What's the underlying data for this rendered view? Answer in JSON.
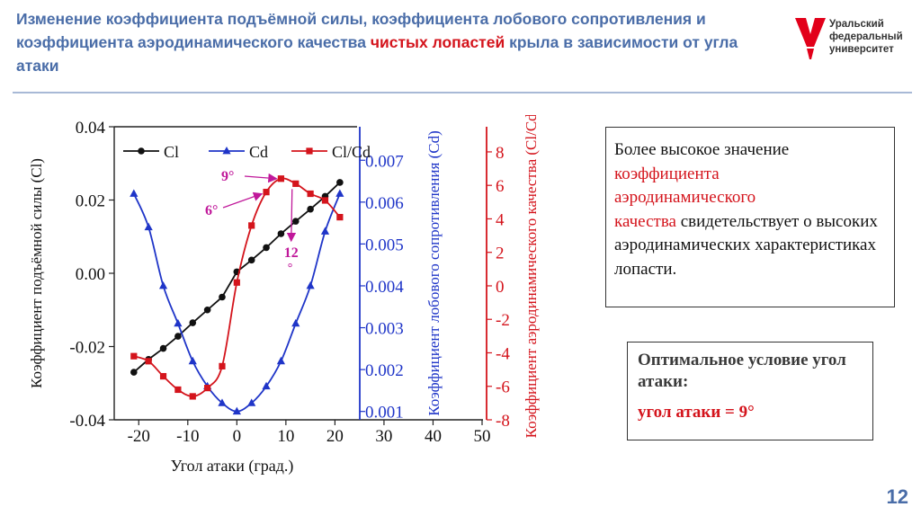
{
  "slide": {
    "title_part1": "Изменение коэффициента подъёмной силы, коэффициента лобового сопротивления и коэффициента аэродинамического качества ",
    "title_red": "чистых лопастей",
    "title_part2": " крыла в зависимости от угла атаки",
    "logo_line1": "Уральский",
    "logo_line2": "федеральный",
    "logo_line3": "университет",
    "page_number": "12"
  },
  "note1": {
    "line1": "Более высокое значение",
    "red_line1": "коэффициента",
    "red_line2": "аэродинамического",
    "red_line3": "качества",
    "tail": " свидетельствует о высоких аэродинамических характеристиках лопасти."
  },
  "note2": {
    "heading": "Оптимальное условие угол атаки",
    "colon": ":",
    "value": "угол атаки = 9°"
  },
  "colors": {
    "cl": "#111111",
    "cd": "#1f35c8",
    "clcd": "#d4141c",
    "annotation": "#c0189a",
    "title": "#4a6da8"
  },
  "chart_data": {
    "type": "line",
    "xlabel": "Угол атаки (град.)",
    "x_ticks": [
      "-20",
      "-10",
      "0",
      "10",
      "20",
      "30",
      "40",
      "50"
    ],
    "xlim": [
      -25,
      50
    ],
    "axes": {
      "left": {
        "label": "Коэффициент подъёмной силы (Cl)",
        "ylim": [
          -0.04,
          0.04
        ],
        "ticks": [
          "-0.04",
          "-0.02",
          "0.00",
          "0.02",
          "0.04"
        ]
      },
      "cd": {
        "label": "Коэффициент лобового сопротивления (Cd)",
        "ylim": [
          0.0008,
          0.0078
        ],
        "ticks": [
          "0.001",
          "0.002",
          "0.003",
          "0.004",
          "0.005",
          "0.006",
          "0.007"
        ]
      },
      "clcd": {
        "label": "Коэффициент аэродинамического качества (Cl/Cd)",
        "ylim": [
          -8,
          9.5
        ],
        "ticks": [
          "-8",
          "-6",
          "-4",
          "-2",
          "0",
          "2",
          "4",
          "6",
          "8"
        ]
      }
    },
    "series": [
      {
        "name": "Cl",
        "axis": "left",
        "marker": "circle",
        "x": [
          -21,
          -18,
          -15,
          -12,
          -9,
          -6,
          -3,
          0,
          3,
          6,
          9,
          12,
          15,
          18,
          21
        ],
        "y": [
          -0.027,
          -0.0235,
          -0.0205,
          -0.0172,
          -0.0135,
          -0.01,
          -0.0065,
          0.0004,
          0.0036,
          0.007,
          0.0108,
          0.0142,
          0.0175,
          0.021,
          0.0248
        ]
      },
      {
        "name": "Cd",
        "axis": "cd",
        "marker": "triangle",
        "x": [
          -21,
          -18,
          -15,
          -12,
          -9,
          -6,
          -3,
          0,
          3,
          6,
          9,
          12,
          15,
          18,
          21
        ],
        "y": [
          0.0062,
          0.0054,
          0.004,
          0.0031,
          0.0022,
          0.0016,
          0.0012,
          0.001,
          0.0012,
          0.0016,
          0.0022,
          0.0031,
          0.004,
          0.0053,
          0.0062
        ]
      },
      {
        "name": "Cl/Cd",
        "axis": "clcd",
        "marker": "square",
        "x": [
          -21,
          -18,
          -15,
          -12,
          -9,
          -6,
          -3,
          0,
          3,
          6,
          9,
          12,
          15,
          18,
          21
        ],
        "y": [
          -4.2,
          -4.5,
          -5.4,
          -6.2,
          -6.6,
          -6.1,
          -4.8,
          0.2,
          3.6,
          5.6,
          6.4,
          6.1,
          5.5,
          5.1,
          4.1
        ]
      }
    ],
    "annotations": [
      {
        "text": "9°",
        "x": 9,
        "y": 6.4,
        "axis": "clcd"
      },
      {
        "text": "6°",
        "x": 6,
        "y": 5.6,
        "axis": "clcd"
      },
      {
        "text": "12",
        "sub": "°",
        "x": 12,
        "y": 6.1,
        "axis": "clcd"
      }
    ],
    "legend_position": "top-left"
  }
}
